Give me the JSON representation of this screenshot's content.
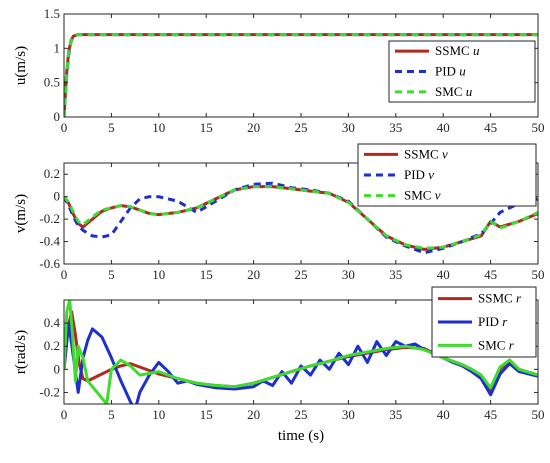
{
  "chart_data": [
    {
      "type": "line",
      "ylabel": "u(m/s)",
      "xlabel": "",
      "xlim": [
        0,
        50
      ],
      "ylim": [
        0,
        1.5
      ],
      "xticks": [
        "0",
        "5",
        "10",
        "15",
        "20",
        "25",
        "30",
        "35",
        "40",
        "45",
        "50"
      ],
      "yticks": [
        "0",
        "0.5",
        "1",
        "1.5"
      ],
      "grid": false,
      "legend_position": "right",
      "series": [
        {
          "name": "SSMC u",
          "color": "#b0281e",
          "style": "solid",
          "x": [
            0,
            0.25,
            0.5,
            0.75,
            1,
            1.25,
            1.5,
            2,
            2.5,
            3,
            5,
            10,
            20,
            30,
            40,
            50
          ],
          "y": [
            0,
            0.6,
            0.95,
            1.12,
            1.18,
            1.19,
            1.2,
            1.2,
            1.2,
            1.2,
            1.2,
            1.2,
            1.2,
            1.2,
            1.2,
            1.2
          ]
        },
        {
          "name": "PID u",
          "color": "#1f2ecf",
          "style": "dashed",
          "x": [
            0,
            0.25,
            0.5,
            0.75,
            1,
            1.25,
            1.5,
            2,
            2.5,
            3,
            5,
            10,
            20,
            30,
            40,
            50
          ],
          "y": [
            0,
            0.55,
            0.9,
            1.1,
            1.17,
            1.19,
            1.2,
            1.2,
            1.2,
            1.2,
            1.2,
            1.2,
            1.2,
            1.2,
            1.2,
            1.2
          ]
        },
        {
          "name": "SMC u",
          "color": "#3fdb2f",
          "style": "dashed",
          "x": [
            0,
            0.25,
            0.5,
            0.75,
            1,
            1.25,
            1.5,
            2,
            2.5,
            3,
            5,
            10,
            20,
            30,
            40,
            50
          ],
          "y": [
            0,
            0.58,
            0.93,
            1.11,
            1.17,
            1.19,
            1.2,
            1.2,
            1.2,
            1.2,
            1.2,
            1.2,
            1.2,
            1.2,
            1.2,
            1.2
          ]
        }
      ]
    },
    {
      "type": "line",
      "ylabel": "v(m/s)",
      "xlabel": "",
      "xlim": [
        0,
        50
      ],
      "ylim": [
        -0.6,
        0.3
      ],
      "xticks": [
        "0",
        "5",
        "10",
        "15",
        "20",
        "25",
        "30",
        "35",
        "40",
        "45",
        "50"
      ],
      "yticks": [
        "-0.6",
        "-0.4",
        "-0.2",
        "0",
        "0.2"
      ],
      "grid": false,
      "legend_position": "top-right",
      "series": [
        {
          "name": "SSMC v",
          "color": "#b0281e",
          "style": "solid",
          "x": [
            0,
            0.5,
            1,
            1.5,
            2,
            3,
            4,
            5,
            6,
            7,
            8,
            9,
            10,
            12,
            14,
            16,
            18,
            20,
            22,
            24,
            26,
            28,
            30,
            32,
            34,
            36,
            38,
            40,
            42,
            44,
            45,
            46,
            48,
            50
          ],
          "y": [
            0,
            -0.06,
            -0.16,
            -0.24,
            -0.27,
            -0.2,
            -0.13,
            -0.1,
            -0.08,
            -0.09,
            -0.12,
            -0.15,
            -0.16,
            -0.14,
            -0.1,
            -0.02,
            0.06,
            0.09,
            0.09,
            0.07,
            0.05,
            0.03,
            -0.05,
            -0.2,
            -0.35,
            -0.43,
            -0.47,
            -0.45,
            -0.4,
            -0.35,
            -0.22,
            -0.27,
            -0.22,
            -0.15
          ]
        },
        {
          "name": "PID v",
          "color": "#1f2ecf",
          "style": "dashed",
          "x": [
            0,
            0.5,
            1,
            1.5,
            2,
            3,
            4,
            5,
            6,
            7,
            8,
            9,
            10,
            12,
            14,
            16,
            18,
            20,
            22,
            24,
            26,
            28,
            30,
            32,
            34,
            36,
            38,
            40,
            42,
            44,
            45,
            46,
            48,
            50
          ],
          "y": [
            0,
            -0.08,
            -0.18,
            -0.26,
            -0.3,
            -0.35,
            -0.36,
            -0.34,
            -0.22,
            -0.1,
            -0.02,
            0.0,
            0.0,
            -0.04,
            -0.14,
            -0.04,
            0.06,
            0.11,
            0.12,
            0.08,
            0.06,
            0.03,
            -0.04,
            -0.2,
            -0.36,
            -0.44,
            -0.5,
            -0.46,
            -0.4,
            -0.33,
            -0.24,
            -0.14,
            -0.06,
            -0.02
          ]
        },
        {
          "name": "SMC v",
          "color": "#3fdb2f",
          "style": "dashed",
          "x": [
            0,
            0.5,
            1,
            1.5,
            2,
            3,
            4,
            5,
            6,
            7,
            8,
            9,
            10,
            12,
            14,
            16,
            18,
            20,
            22,
            24,
            26,
            28,
            30,
            32,
            34,
            36,
            38,
            40,
            42,
            44,
            45,
            46,
            48,
            50
          ],
          "y": [
            0,
            -0.05,
            -0.14,
            -0.22,
            -0.25,
            -0.18,
            -0.12,
            -0.1,
            -0.08,
            -0.09,
            -0.12,
            -0.15,
            -0.16,
            -0.14,
            -0.1,
            -0.02,
            0.06,
            0.09,
            0.09,
            0.07,
            0.05,
            0.03,
            -0.05,
            -0.2,
            -0.35,
            -0.43,
            -0.46,
            -0.45,
            -0.4,
            -0.34,
            -0.22,
            -0.28,
            -0.22,
            -0.14
          ]
        }
      ]
    },
    {
      "type": "line",
      "ylabel": "r(rad/s)",
      "xlabel": "time (s)",
      "xlim": [
        0,
        50
      ],
      "ylim": [
        -0.3,
        0.6
      ],
      "xticks": [
        "0",
        "5",
        "10",
        "15",
        "20",
        "25",
        "30",
        "35",
        "40",
        "45",
        "50"
      ],
      "yticks": [
        "-0.2",
        "0",
        "0.2",
        "0.4"
      ],
      "grid": false,
      "legend_position": "top-right",
      "series": [
        {
          "name": "SSMC r",
          "color": "#b0281e",
          "style": "solid",
          "x": [
            0,
            0.4,
            0.8,
            1.2,
            1.6,
            2,
            2.5,
            3,
            4,
            5,
            6,
            7,
            8,
            10,
            12,
            14,
            16,
            18,
            20,
            22,
            24,
            26,
            28,
            30,
            32,
            34,
            36,
            38,
            40,
            42,
            43,
            44,
            45,
            46,
            47,
            48,
            50
          ],
          "y": [
            0,
            0.35,
            0.5,
            0.3,
            0.05,
            -0.08,
            -0.1,
            -0.08,
            -0.04,
            0.0,
            0.03,
            0.05,
            0.02,
            -0.04,
            -0.08,
            -0.12,
            -0.14,
            -0.15,
            -0.12,
            -0.07,
            -0.02,
            0.03,
            0.07,
            0.11,
            0.14,
            0.17,
            0.19,
            0.18,
            0.1,
            0.04,
            0.0,
            -0.05,
            -0.18,
            0.0,
            0.08,
            0.0,
            -0.05
          ]
        },
        {
          "name": "PID r",
          "color": "#1f2ecf",
          "style": "solid",
          "x": [
            0,
            0.5,
            1,
            1.5,
            2,
            2.5,
            3,
            4,
            5,
            6,
            7,
            7.5,
            8,
            9,
            10,
            11,
            12,
            13,
            14,
            16,
            18,
            20,
            21,
            22,
            23,
            24,
            25,
            26,
            27,
            28,
            29,
            30,
            31,
            32,
            33,
            34,
            35,
            36,
            37,
            38,
            39,
            40,
            41,
            42,
            43,
            44,
            45,
            46,
            47,
            48,
            50
          ],
          "y": [
            0,
            0.4,
            0.1,
            -0.2,
            0.1,
            0.25,
            0.35,
            0.28,
            0.1,
            -0.1,
            -0.28,
            -0.35,
            -0.2,
            -0.05,
            0.06,
            -0.02,
            -0.12,
            -0.1,
            -0.13,
            -0.16,
            -0.17,
            -0.15,
            -0.1,
            -0.14,
            -0.02,
            -0.12,
            0.03,
            -0.05,
            0.08,
            0.0,
            0.14,
            0.04,
            0.2,
            0.06,
            0.24,
            0.12,
            0.24,
            0.2,
            0.22,
            0.17,
            0.14,
            0.1,
            0.06,
            0.03,
            -0.02,
            -0.08,
            -0.22,
            -0.04,
            0.05,
            -0.02,
            -0.06
          ]
        },
        {
          "name": "SMC r",
          "color": "#3fdb2f",
          "style": "solid",
          "x": [
            0,
            0.3,
            0.6,
            0.9,
            1.2,
            1.5,
            2,
            2.5,
            3,
            3.5,
            4,
            4.5,
            5,
            6,
            7,
            8,
            10,
            12,
            14,
            16,
            18,
            20,
            22,
            24,
            26,
            28,
            30,
            32,
            34,
            36,
            38,
            40,
            42,
            43,
            44,
            45,
            46,
            47,
            48,
            50
          ],
          "y": [
            0,
            0.5,
            0.6,
            0.3,
            -0.1,
            0.2,
            0.1,
            -0.1,
            -0.15,
            -0.2,
            -0.25,
            -0.3,
            0.0,
            0.08,
            0.03,
            -0.05,
            -0.02,
            -0.08,
            -0.12,
            -0.14,
            -0.15,
            -0.12,
            -0.07,
            -0.02,
            0.03,
            0.07,
            0.12,
            0.15,
            0.18,
            0.2,
            0.17,
            0.1,
            0.04,
            0.0,
            -0.05,
            -0.16,
            0.02,
            0.08,
            0.0,
            -0.05
          ]
        }
      ]
    }
  ]
}
